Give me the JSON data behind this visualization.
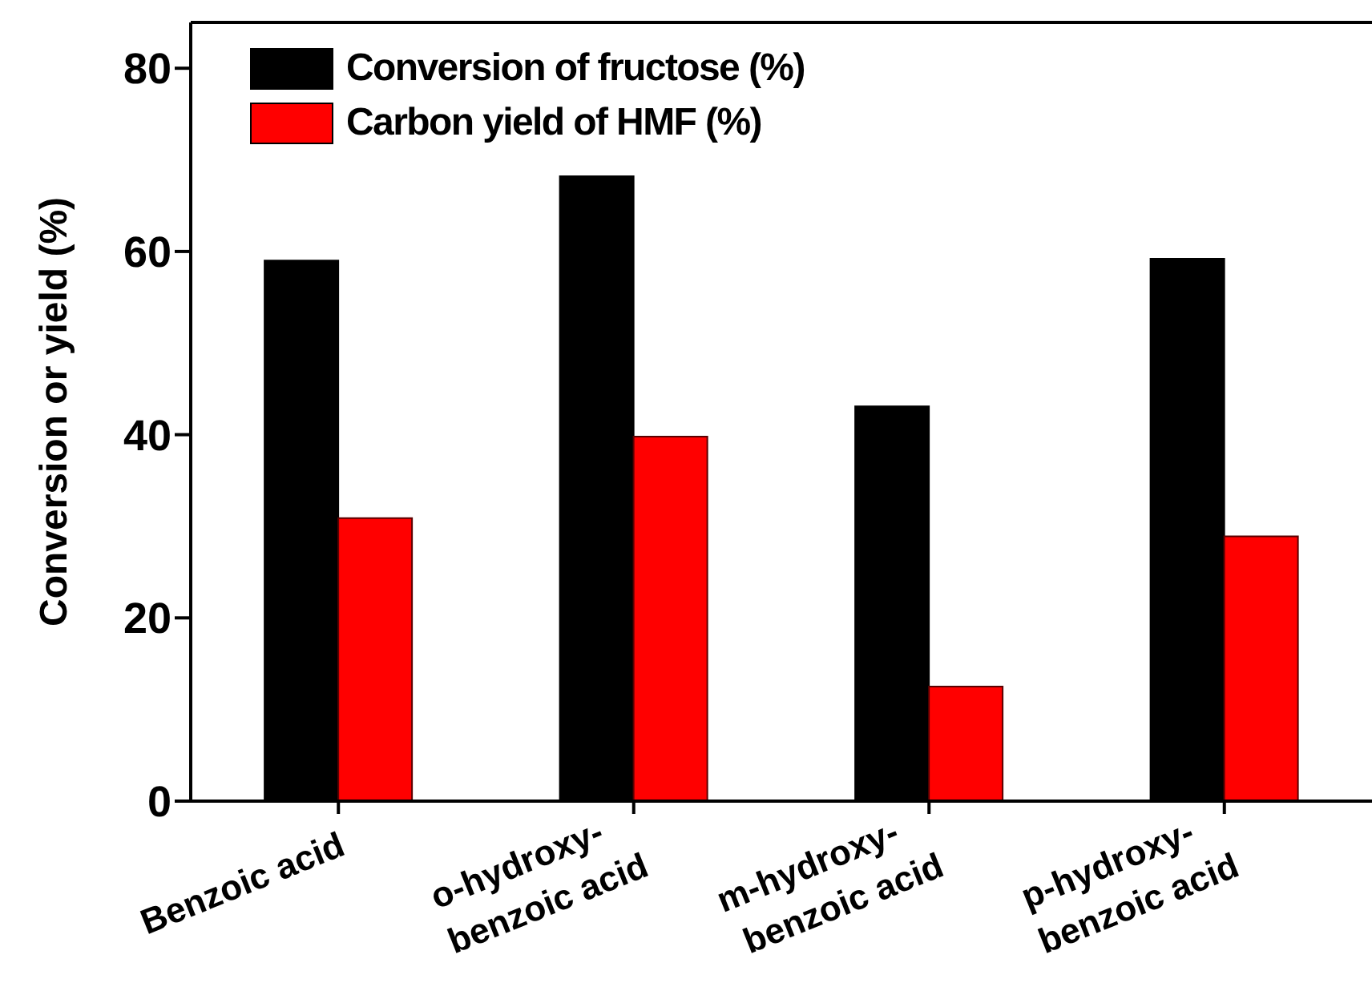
{
  "chart_data": {
    "type": "bar",
    "ylabel": "Conversion or yield (%)",
    "categories": [
      "Benzoic acid",
      "o-hydroxy-\nbenzoic acid",
      "m-hydroxy-\nbenzoic acid",
      "p-hydroxy-\nbenzoic acid"
    ],
    "series": [
      {
        "name": "Conversion of fructose (%)",
        "color": "#000000",
        "values": [
          59.0,
          68.2,
          43.1,
          59.2
        ]
      },
      {
        "name": "Carbon yield of HMF (%)",
        "color": "#ff0000",
        "values": [
          30.9,
          39.8,
          12.5,
          28.9
        ]
      }
    ],
    "ylim": [
      0,
      85
    ],
    "yticks": [
      0,
      20,
      40,
      60,
      80
    ],
    "grid": false,
    "legend": "top left"
  }
}
